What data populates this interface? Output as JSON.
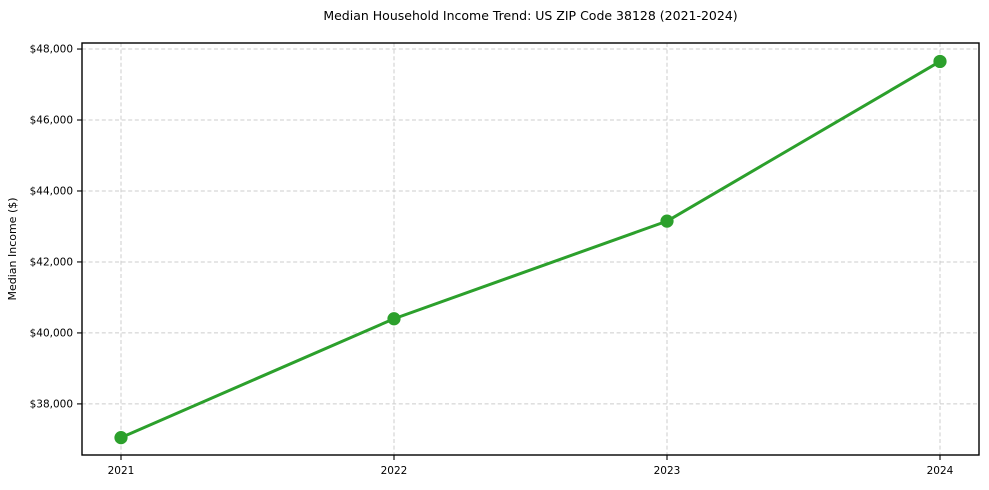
{
  "chart_data": {
    "type": "line",
    "title": "Median Household Income Trend: US ZIP Code 38128 (2021-2024)",
    "xlabel": "",
    "ylabel": "Median Income ($)",
    "categories": [
      "2021",
      "2022",
      "2023",
      "2024"
    ],
    "series": [
      {
        "name": "Median Household Income",
        "values": [
          37050,
          40400,
          43150,
          47650
        ],
        "color": "#2ca02c",
        "marker": "circle",
        "line_style": "solid"
      }
    ],
    "y_ticks": [
      38000,
      40000,
      42000,
      44000,
      46000,
      48000
    ],
    "y_tick_labels": [
      "$38,000",
      "$40,000",
      "$42,000",
      "$44,000",
      "$46,000",
      "$48,000"
    ],
    "ylim": [
      36560,
      48170
    ],
    "grid": true,
    "grid_style": "dashed",
    "legend_position": "none"
  },
  "colors": {
    "series_green": "#2ca02c",
    "grid": "#cccccc",
    "axis": "#000000",
    "text": "#000000",
    "background": "#ffffff"
  }
}
